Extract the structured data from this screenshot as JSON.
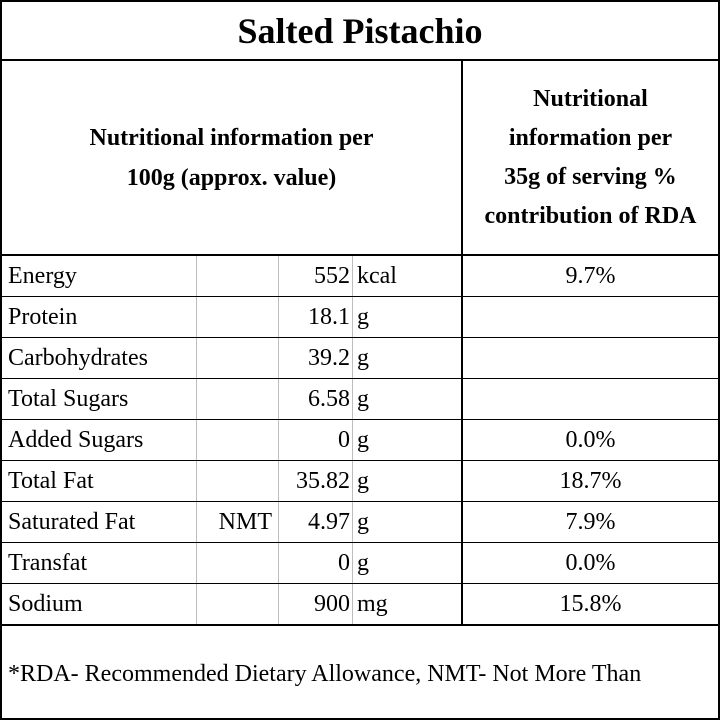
{
  "title": "Salted Pistachio",
  "header": {
    "left": "Nutritional information per\n100g (approx. value)",
    "right": "Nutritional\ninformation per\n35g of serving %\ncontribution of RDA"
  },
  "rows": [
    {
      "name": "Energy",
      "note": "",
      "value": "552",
      "unit": "kcal",
      "rda": "9.7%"
    },
    {
      "name": "Protein",
      "note": "",
      "value": "18.1",
      "unit": "g",
      "rda": ""
    },
    {
      "name": "Carbohydrates",
      "note": "",
      "value": "39.2",
      "unit": "g",
      "rda": ""
    },
    {
      "name": "Total Sugars",
      "note": "",
      "value": "6.58",
      "unit": "g",
      "rda": ""
    },
    {
      "name": "Added Sugars",
      "note": "",
      "value": "0",
      "unit": "g",
      "rda": "0.0%"
    },
    {
      "name": "Total Fat",
      "note": "",
      "value": "35.82",
      "unit": "g",
      "rda": "18.7%"
    },
    {
      "name": "Saturated Fat",
      "note": "NMT",
      "value": "4.97",
      "unit": "g",
      "rda": "7.9%"
    },
    {
      "name": "Transfat",
      "note": "",
      "value": "0",
      "unit": "g",
      "rda": "0.0%"
    },
    {
      "name": "Sodium",
      "note": "",
      "value": "900",
      "unit": "mg",
      "rda": "15.8%"
    }
  ],
  "footnote": "*RDA- Recommended Dietary Allowance, NMT- Not More Than"
}
